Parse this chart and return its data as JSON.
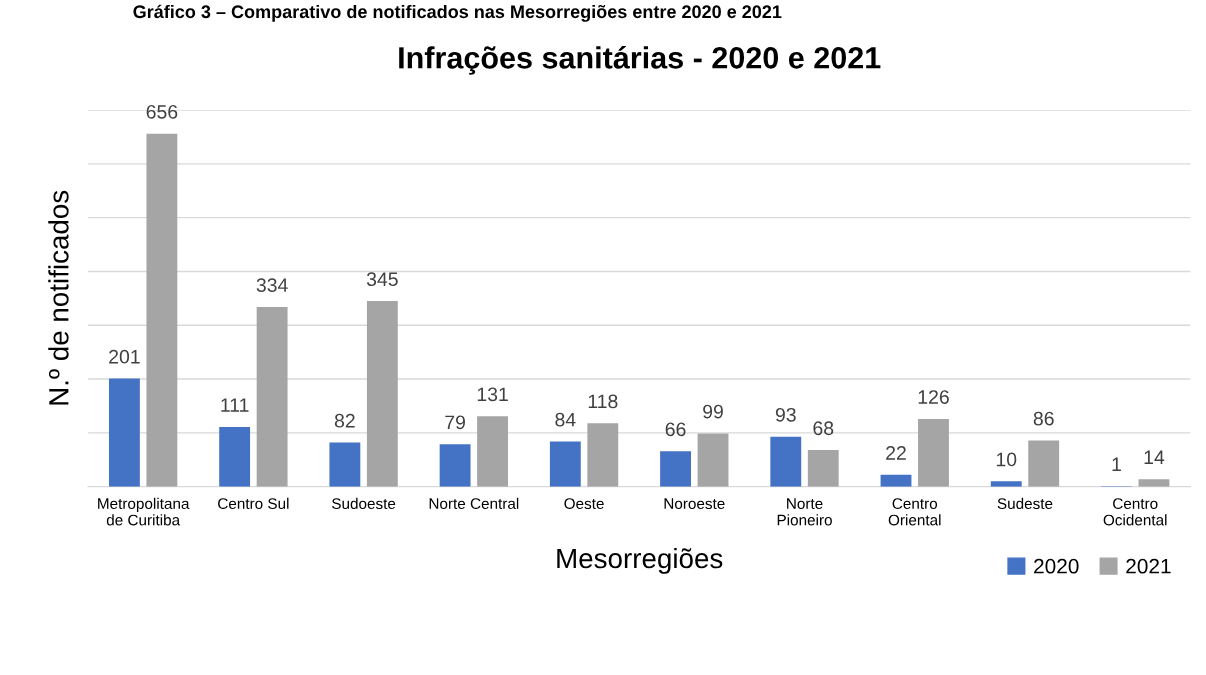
{
  "chart_data": {
    "type": "bar",
    "title": "Infrações sanitárias - 2020 e 2021",
    "xlabel": "Mesorregiões",
    "ylabel": "N.º de notificados",
    "annotations": [
      "Gráfico 3 – Comparativo de notificados nas Mesorregiões entre 2020 e 2021"
    ],
    "categories": [
      "Metropolitana\nde Curitiba",
      "Centro Sul",
      "Sudoeste",
      "Norte Central",
      "Oeste",
      "Noroeste",
      "Norte\nPioneiro",
      "Centro\nOriental",
      "Sudeste",
      "Centro\nOcidental"
    ],
    "series": [
      {
        "name": "2020",
        "color": "#4472c4",
        "values": [
          201,
          111,
          82,
          79,
          84,
          66,
          93,
          22,
          10,
          1
        ]
      },
      {
        "name": "2021",
        "color": "#a5a5a5",
        "values": [
          656,
          334,
          345,
          131,
          118,
          99,
          68,
          126,
          86,
          14
        ]
      }
    ],
    "ylim": [
      0,
      700
    ],
    "yticks": [
      {
        "value": 0,
        "label": null
      },
      {
        "value": 100,
        "label": null
      },
      {
        "value": 200,
        "label": null
      },
      {
        "value": 300,
        "label": null
      },
      {
        "value": 400,
        "label": null
      },
      {
        "value": 500,
        "label": null
      },
      {
        "value": 600,
        "label": null
      },
      {
        "value": 700,
        "label": null
      }
    ],
    "tick_labels": "x",
    "grid": "y",
    "data_labels": true,
    "legend": "bottom right"
  }
}
